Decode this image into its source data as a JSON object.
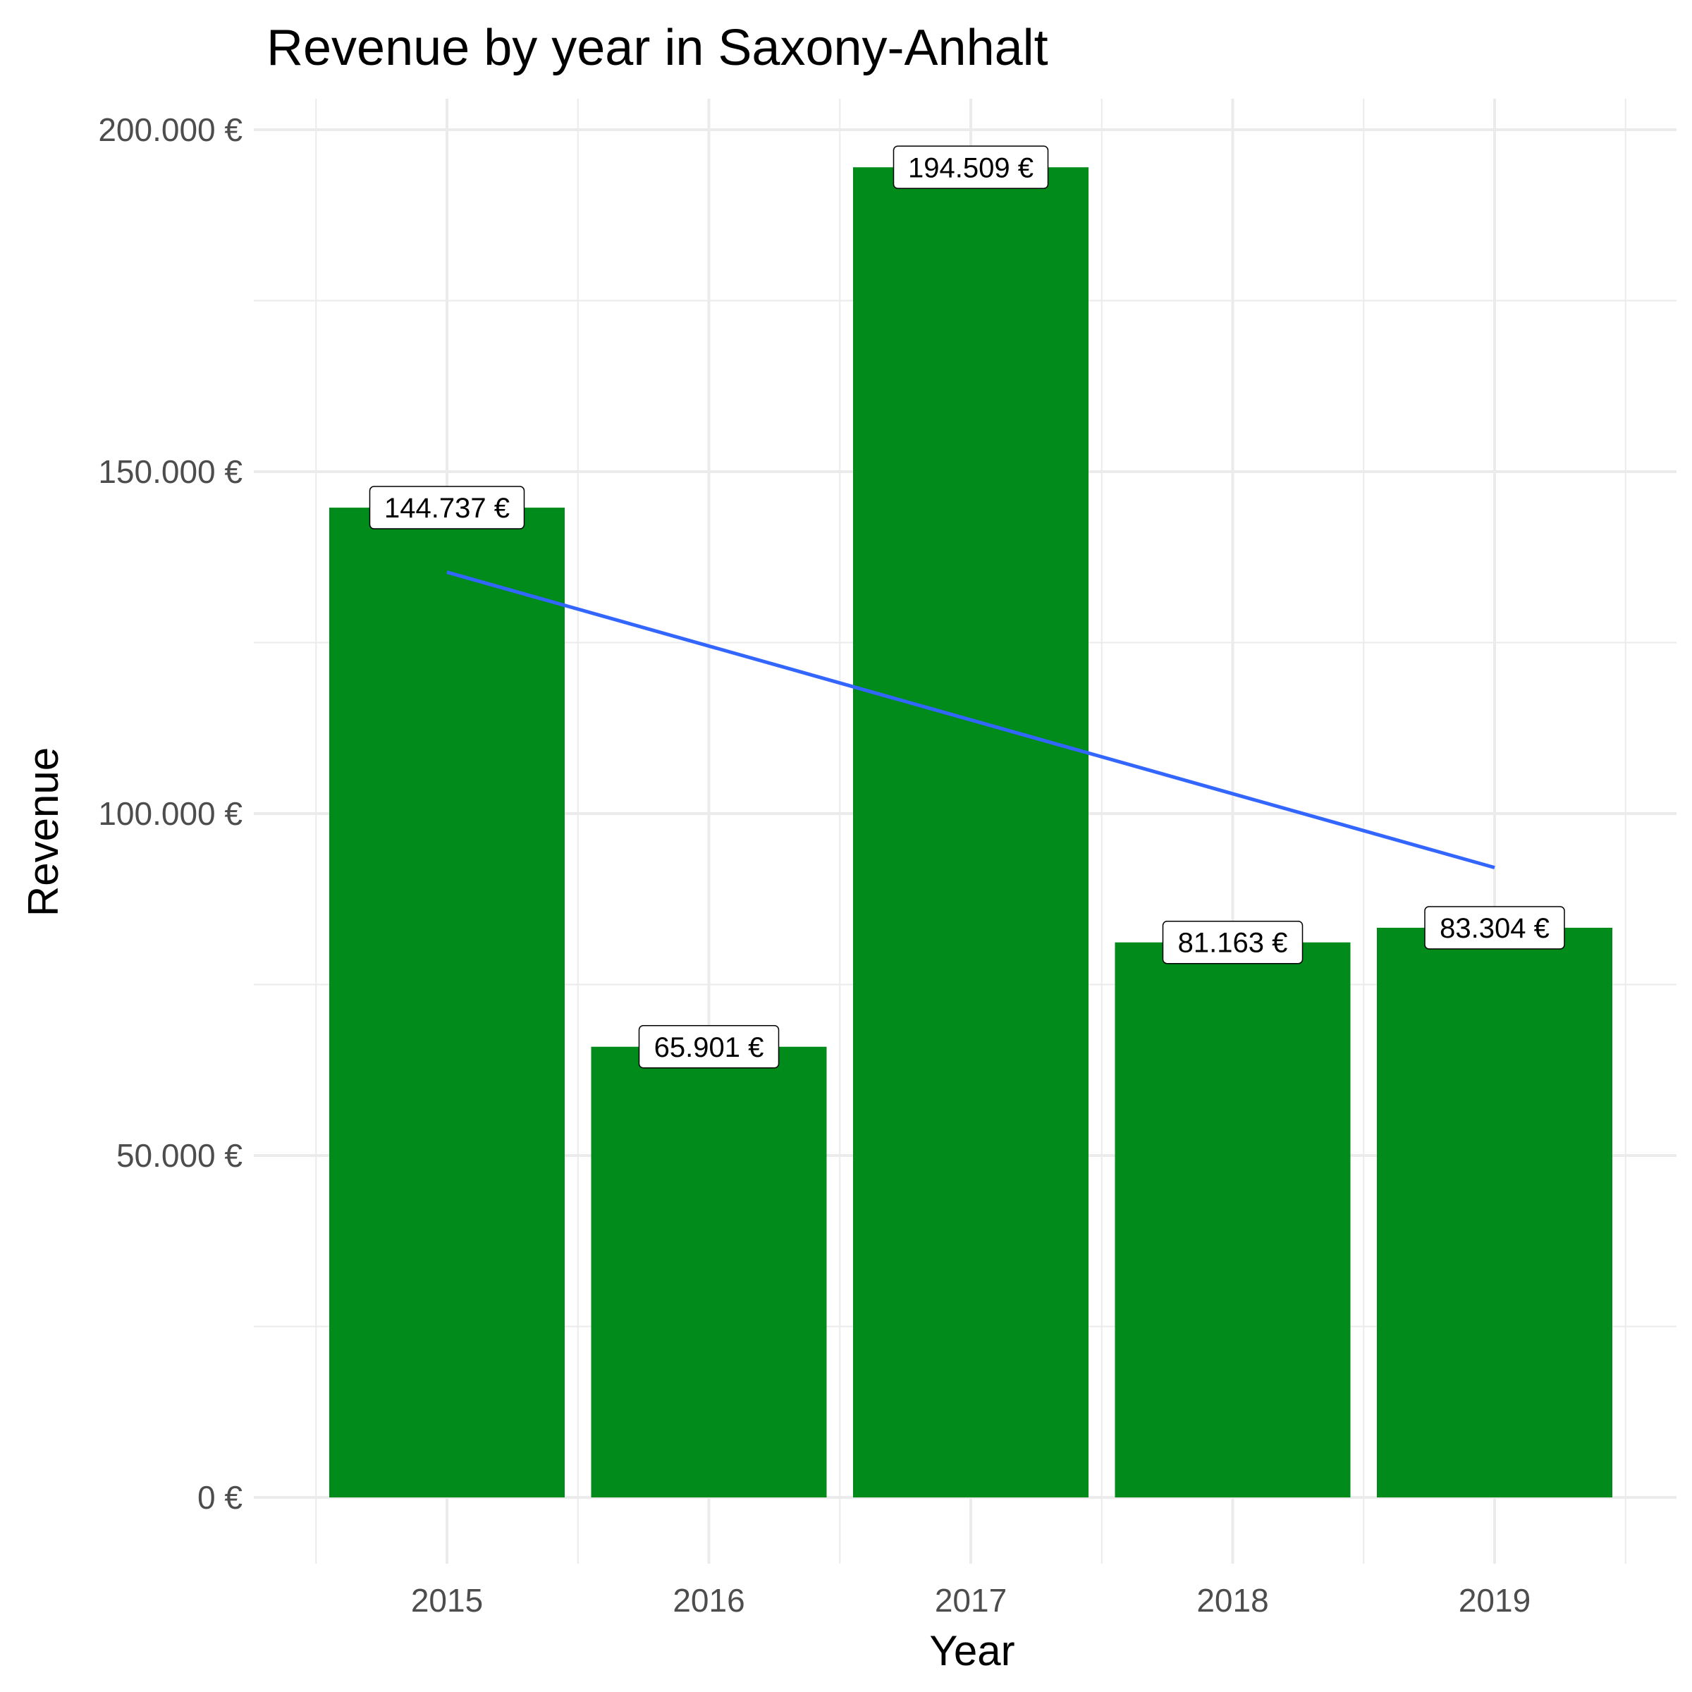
{
  "chart_data": {
    "type": "bar",
    "title": "Revenue by year in Saxony-Anhalt",
    "xlabel": "Year",
    "ylabel": "Revenue",
    "categories": [
      "2015",
      "2016",
      "2017",
      "2018",
      "2019"
    ],
    "values": [
      144737,
      65901,
      194509,
      81163,
      83304
    ],
    "data_labels": [
      "144.737 €",
      "65.901 €",
      "194.509 €",
      "81.163 €",
      "83.304 €"
    ],
    "ylim": [
      0,
      200000
    ],
    "yticks": [
      0,
      50000,
      100000,
      150000,
      200000
    ],
    "ytick_labels": [
      "0 €",
      "50.000 €",
      "100.000 €",
      "150.000 €",
      "200.000 €"
    ],
    "trend_line": {
      "start": 135300,
      "end": 92100
    },
    "grid": true,
    "legend": "none",
    "colors": {
      "bar": "#018b1a",
      "trend": "#3366ff",
      "grid": "#ebebeb"
    }
  }
}
